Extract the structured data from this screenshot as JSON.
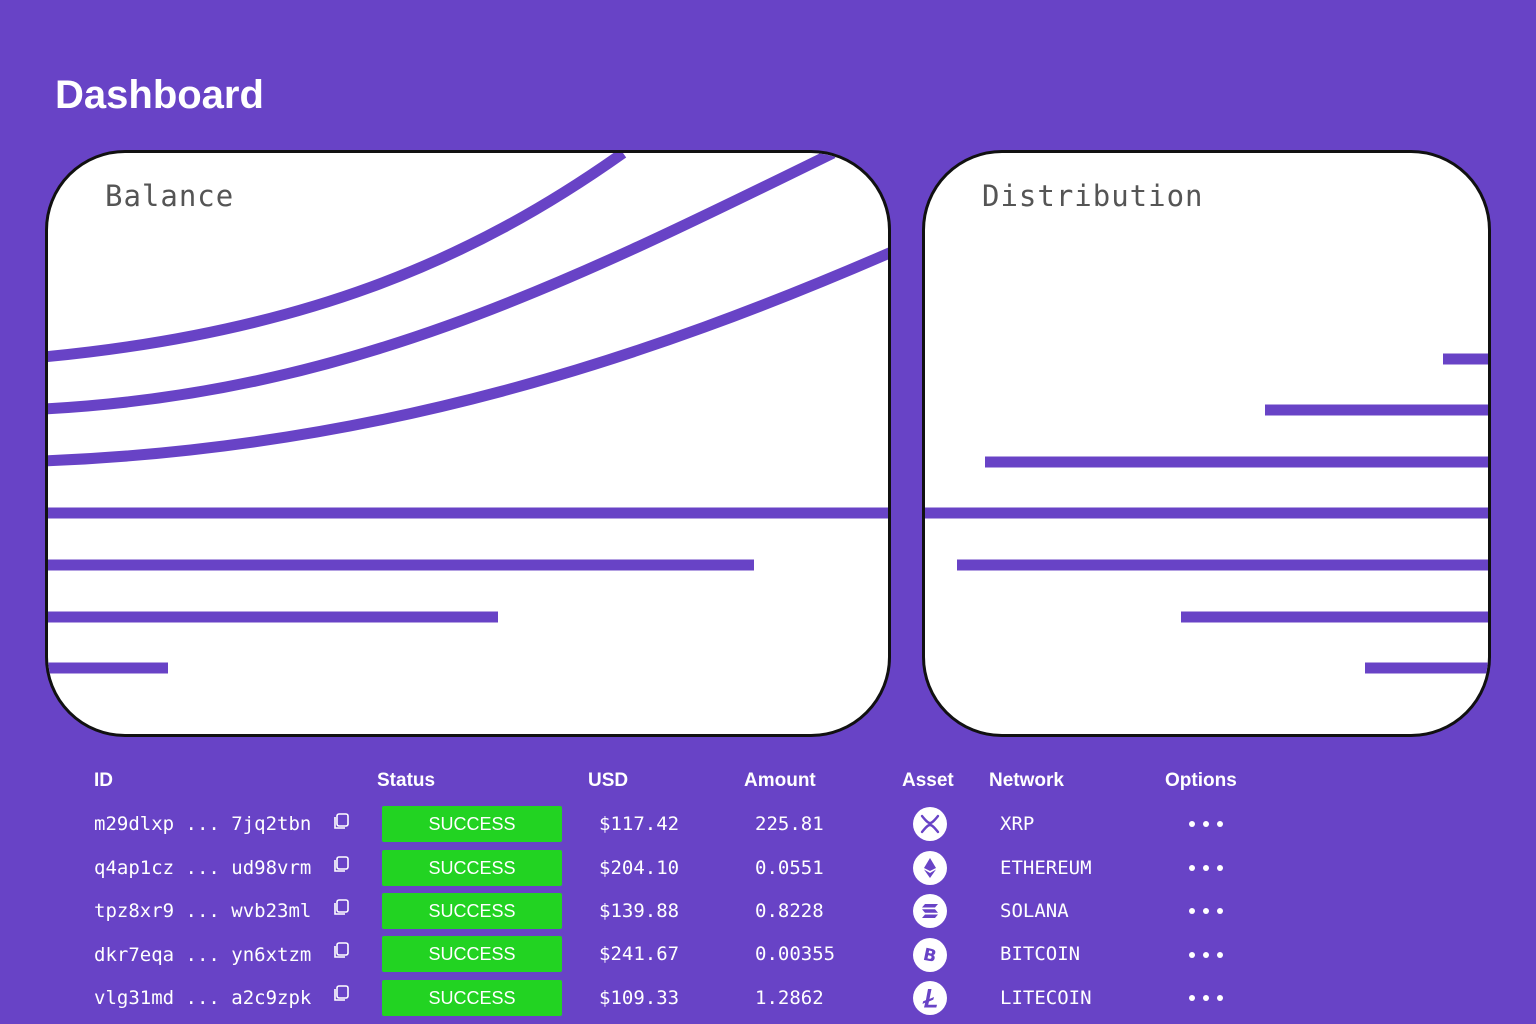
{
  "header": {
    "title": "Dashboard"
  },
  "cards": {
    "balance": {
      "title": "Balance"
    },
    "distribution": {
      "title": "Distribution"
    }
  },
  "colors": {
    "background": "#6843c6",
    "line": "#6843c6",
    "success": "#22d322",
    "card": "#ffffff"
  },
  "table": {
    "headers": {
      "id": "ID",
      "status": "Status",
      "usd": "USD",
      "amount": "Amount",
      "asset": "Asset",
      "network": "Network",
      "options": "Options"
    },
    "rows": [
      {
        "id": "m29dlxp ... 7jq2tbn",
        "status": "SUCCESS",
        "usd": "$117.42",
        "amount": "225.81",
        "asset_icon": "xrp-icon",
        "network": "XRP"
      },
      {
        "id": "q4ap1cz ... ud98vrm",
        "status": "SUCCESS",
        "usd": "$204.10",
        "amount": "0.0551",
        "asset_icon": "ethereum-icon",
        "network": "ETHEREUM"
      },
      {
        "id": "tpz8xr9 ... wvb23ml",
        "status": "SUCCESS",
        "usd": "$139.88",
        "amount": "0.8228",
        "asset_icon": "solana-icon",
        "network": "SOLANA"
      },
      {
        "id": "dkr7eqa ... yn6xtzm",
        "status": "SUCCESS",
        "usd": "$241.67",
        "amount": "0.00355",
        "asset_icon": "bitcoin-icon",
        "network": "BITCOIN"
      },
      {
        "id": "vlg31md ... a2c9zpk",
        "status": "SUCCESS",
        "usd": "$109.33",
        "amount": "1.2862",
        "asset_icon": "litecoin-icon",
        "network": "LITECOIN"
      }
    ]
  }
}
